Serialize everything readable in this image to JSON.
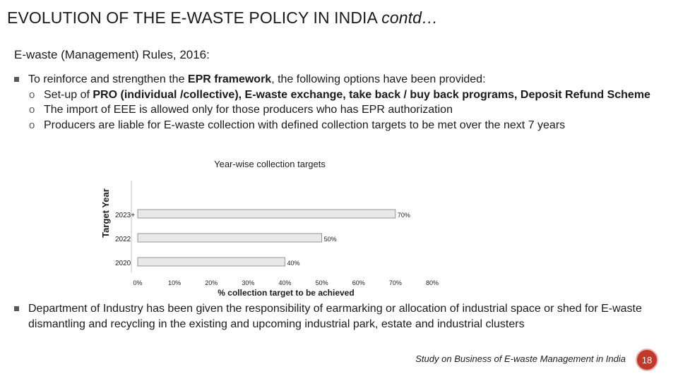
{
  "header": {
    "title_main": "EVOLUTION OF THE E-WASTE POLICY IN INDIA",
    "title_contd": "contd…"
  },
  "subtitle": "E-waste (Management) Rules, 2016:",
  "bullet1": {
    "pre": "To reinforce and strengthen the ",
    "bold": "EPR framework",
    "post": ", the following options have been provided:",
    "subs": [
      {
        "pre": "Set-up of ",
        "bold": "PRO (individual /collective), E-waste exchange, take back / buy back programs, Deposit Refund Scheme",
        "post": ""
      },
      {
        "pre": "The import of EEE is allowed only for those producers who has EPR authorization",
        "bold": "",
        "post": ""
      },
      {
        "pre": "Producers are liable for E-waste collection with defined collection targets to be met over the next 7 years",
        "bold": "",
        "post": ""
      }
    ]
  },
  "bullet2": "Department of Industry has been given the responsibility of earmarking or allocation of industrial space or shed for E-waste dismantling and recycling in the existing and upcoming industrial park, estate and industrial clusters",
  "footer": {
    "source": "Study on Business of E-waste Management in India",
    "page": "18"
  },
  "colors": {
    "bar": "#e8e8e8",
    "page_badge": "#c0392b"
  },
  "chart_data": {
    "type": "bar",
    "orientation": "horizontal",
    "title": "Year-wise collection targets",
    "xlabel": "% collection target to be achieved",
    "ylabel": "Target Year",
    "categories": [
      "2023+",
      "2022",
      "2020"
    ],
    "values": [
      70,
      50,
      40
    ],
    "value_labels": [
      "70%",
      "50%",
      "40%"
    ],
    "xlim": [
      0,
      80
    ],
    "xticks": [
      0,
      10,
      20,
      30,
      40,
      50,
      60,
      70,
      80
    ],
    "xtick_labels": [
      "0%",
      "10%",
      "20%",
      "30%",
      "40%",
      "50%",
      "60%",
      "70%",
      "80%"
    ],
    "grid": false,
    "legend": "none"
  }
}
